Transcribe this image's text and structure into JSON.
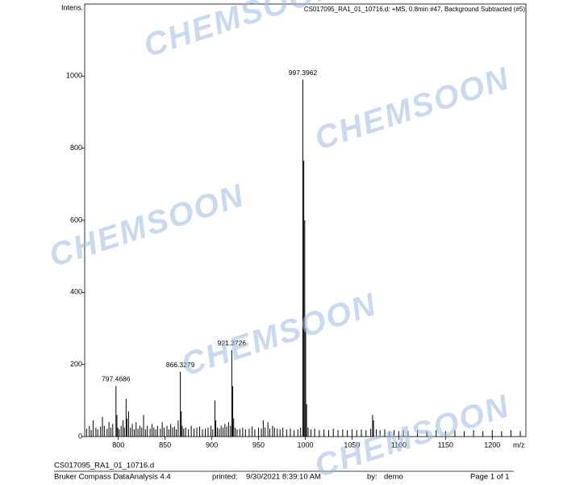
{
  "chart_data": {
    "type": "spectrum",
    "title": "CS017095_RA1_01_10716.d: +MS, 0.8min #47, Background Subtracted (#5)",
    "y_label": "Intens.",
    "x_label": "m/z",
    "color": "#000000",
    "xlim": [
      764,
      1236
    ],
    "xticks": [
      800,
      850,
      900,
      950,
      1000,
      1050,
      1100,
      1150,
      1200
    ],
    "ylim": [
      0,
      1200
    ],
    "yticks": [
      0,
      200,
      400,
      600,
      800,
      1000
    ],
    "x": [
      766,
      769,
      771,
      773,
      776,
      778,
      781,
      783,
      785,
      788,
      790,
      792,
      794,
      797.4686,
      798.47,
      799.5,
      801,
      803,
      805,
      806.5,
      808.3,
      809.3,
      811,
      813,
      815,
      817,
      819,
      821,
      823,
      825,
      827,
      829,
      831,
      834,
      836,
      838,
      840,
      842,
      845,
      847,
      849,
      852,
      854,
      856,
      858,
      860,
      862,
      864,
      866.3279,
      867.33,
      868.3,
      870,
      872,
      875,
      878,
      881,
      884,
      887,
      890,
      893,
      896,
      899,
      901,
      903.3,
      904.3,
      906,
      908,
      910,
      912,
      914,
      916,
      918,
      920,
      921.3726,
      922.37,
      923.37,
      925,
      927,
      930,
      933,
      936,
      940,
      943,
      946,
      950,
      953,
      955,
      957,
      960,
      962,
      965,
      967,
      970,
      973,
      976,
      980,
      984,
      988,
      992,
      995,
      997.3962,
      998.4,
      999.4,
      1000.4,
      1001.4,
      1003,
      1006,
      1010,
      1015,
      1020,
      1025,
      1030,
      1035,
      1040,
      1045,
      1050,
      1055,
      1060,
      1065,
      1070,
      1072,
      1073,
      1076,
      1080,
      1085,
      1090,
      1095,
      1100,
      1105,
      1110,
      1120,
      1130,
      1140,
      1150,
      1160,
      1170,
      1180,
      1190,
      1200,
      1210,
      1220,
      1230
    ],
    "values": [
      22,
      30,
      18,
      45,
      25,
      20,
      28,
      55,
      30,
      22,
      40,
      25,
      35,
      140,
      60,
      25,
      20,
      30,
      45,
      25,
      105,
      50,
      70,
      25,
      35,
      20,
      40,
      22,
      30,
      25,
      60,
      20,
      30,
      22,
      35,
      25,
      20,
      30,
      22,
      40,
      25,
      30,
      20,
      35,
      25,
      28,
      20,
      45,
      180,
      70,
      30,
      22,
      25,
      20,
      30,
      22,
      25,
      28,
      20,
      22,
      25,
      30,
      20,
      100,
      45,
      25,
      22,
      30,
      25,
      35,
      28,
      40,
      30,
      240,
      140,
      50,
      25,
      20,
      22,
      25,
      20,
      22,
      28,
      20,
      25,
      22,
      45,
      25,
      40,
      22,
      30,
      25,
      22,
      20,
      25,
      20,
      22,
      18,
      20,
      25,
      990,
      765,
      600,
      300,
      90,
      25,
      20,
      22,
      18,
      20,
      18,
      22,
      18,
      20,
      18,
      20,
      18,
      20,
      18,
      22,
      60,
      45,
      20,
      18,
      20,
      15,
      18,
      15,
      18,
      15,
      18,
      15,
      18,
      15,
      18,
      15,
      18,
      15,
      18,
      15,
      18,
      15
    ],
    "peak_labels": [
      797.4686,
      866.3279,
      921.3726,
      997.3962
    ]
  },
  "watermark": "CHEMSOON",
  "footer": {
    "file": "CS017095_RA1_01_10716.d",
    "software": "Bruker Compass DataAnalysis 4.4",
    "printed_label": "printed:",
    "printed": "9/30/2021 8:39:10 AM",
    "by_label": "by:",
    "by": "demo",
    "page": "Page 1 of 1"
  }
}
